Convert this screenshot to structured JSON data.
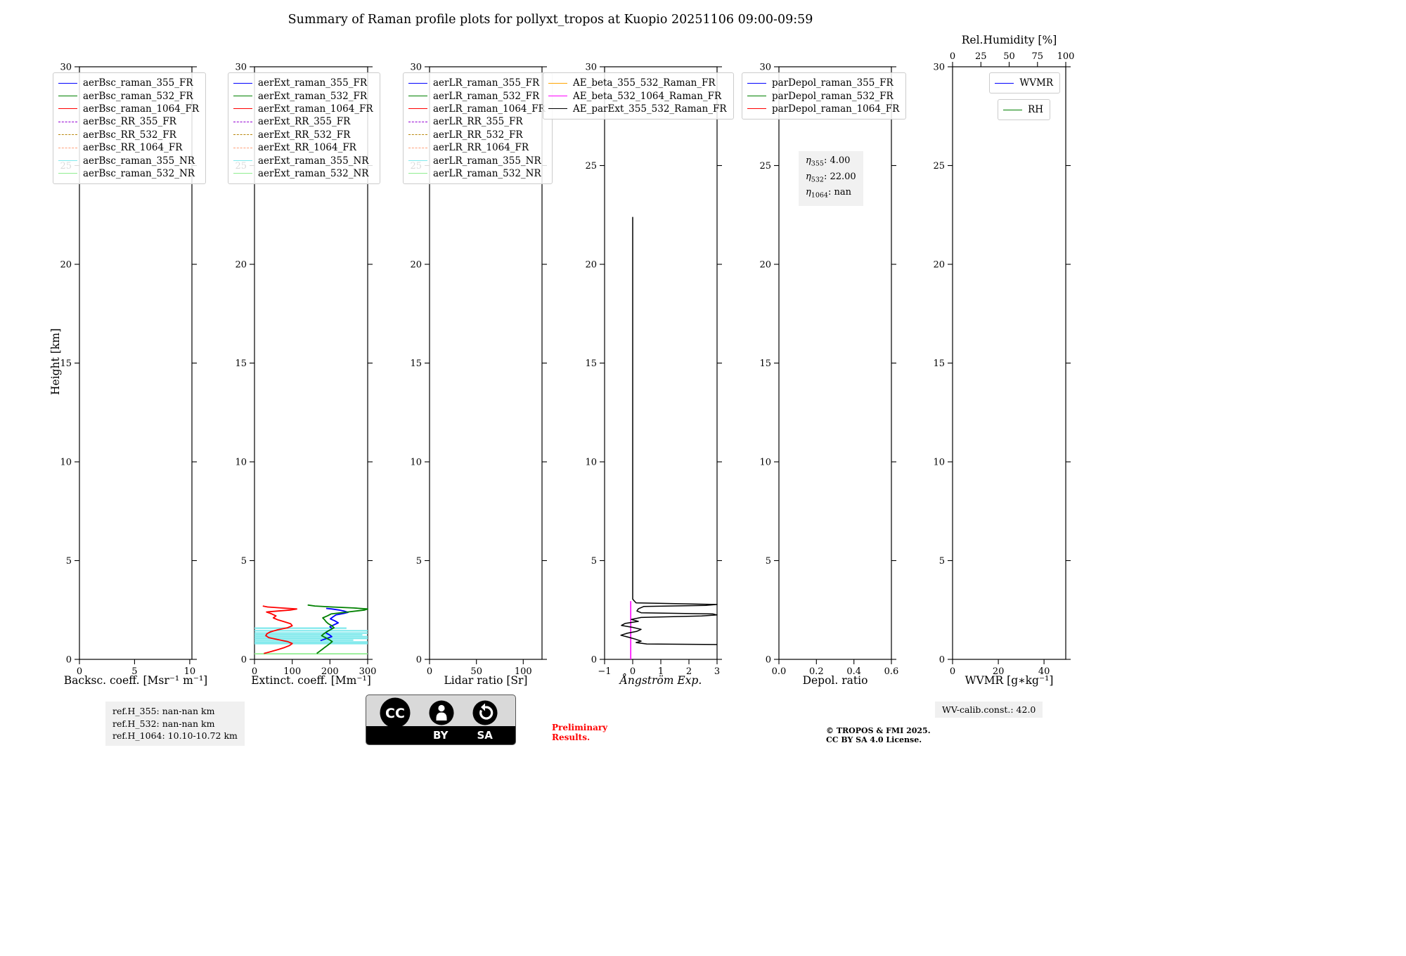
{
  "title": "Summary of Raman profile plots for pollyxt_tropos at Kuopio 20251106 09:00-09:59",
  "ylabel": "Height [km]",
  "footer": {
    "ref_h_355": "ref.H_355: nan-nan km",
    "ref_h_532": "ref.H_532: nan-nan km",
    "ref_h_1064": "ref.H_1064: 10.10-10.72 km",
    "preliminary_line1": "Preliminary",
    "preliminary_line2": "Results.",
    "copyright_line1": "© TROPOS & FMI 2025.",
    "copyright_line2": "CC BY SA 4.0 License.",
    "wv_calib": "WV-calib.const.: 42.0",
    "cc_label": "CC",
    "cc_by": "BY",
    "cc_sa": "SA"
  },
  "chart_data": [
    {
      "id": "backscatter",
      "type": "line",
      "xlabel": "Backsc. coeff. [Msr⁻¹ m⁻¹]",
      "xlim": [
        0,
        10.2
      ],
      "xticks": [
        0,
        5,
        10
      ],
      "xtick_labels": [
        "0",
        "5",
        "10"
      ],
      "ylim": [
        0,
        30
      ],
      "yticks": [
        0,
        5,
        10,
        15,
        20,
        25,
        30
      ],
      "ytick_labels": [
        "0",
        "5",
        "10",
        "15",
        "20",
        "25",
        "30"
      ],
      "grid": false,
      "legend_loc": "upper left",
      "legend": [
        {
          "label": "aerBsc_raman_355_FR",
          "color": "#0000ff",
          "style": "solid"
        },
        {
          "label": "aerBsc_raman_532_FR",
          "color": "#008000",
          "style": "solid"
        },
        {
          "label": "aerBsc_raman_1064_FR",
          "color": "#ff0000",
          "style": "solid"
        },
        {
          "label": "aerBsc_RR_355_FR",
          "color": "#9400d3",
          "style": "dashed"
        },
        {
          "label": "aerBsc_RR_532_FR",
          "color": "#b8860b",
          "style": "dashed"
        },
        {
          "label": "aerBsc_RR_1064_FR",
          "color": "#ffa07a",
          "style": "dashed"
        },
        {
          "label": "aerBsc_raman_355_NR",
          "color": "#7fe9ec",
          "style": "solid"
        },
        {
          "label": "aerBsc_raman_532_NR",
          "color": "#90ee90",
          "style": "solid"
        }
      ],
      "series": []
    },
    {
      "id": "extinction",
      "type": "line",
      "xlabel": "Extinct. coeff. [Mm⁻¹]",
      "xlim": [
        0,
        300
      ],
      "xticks": [
        0,
        100,
        200,
        300
      ],
      "xtick_labels": [
        "0",
        "100",
        "200",
        "300"
      ],
      "ylim": [
        0,
        30
      ],
      "yticks": [
        0,
        5,
        10,
        15,
        20,
        25,
        30
      ],
      "ytick_labels": [
        "0",
        "5",
        "10",
        "15",
        "20",
        "25",
        "30"
      ],
      "grid": false,
      "legend_loc": "upper left",
      "legend": [
        {
          "label": "aerExt_raman_355_FR",
          "color": "#0000ff",
          "style": "solid"
        },
        {
          "label": "aerExt_raman_532_FR",
          "color": "#008000",
          "style": "solid"
        },
        {
          "label": "aerExt_raman_1064_FR",
          "color": "#ff0000",
          "style": "solid"
        },
        {
          "label": "aerExt_RR_355_FR",
          "color": "#9400d3",
          "style": "dashed"
        },
        {
          "label": "aerExt_RR_532_FR",
          "color": "#b8860b",
          "style": "dashed"
        },
        {
          "label": "aerExt_RR_1064_FR",
          "color": "#ffa07a",
          "style": "dashed"
        },
        {
          "label": "aerExt_raman_355_NR",
          "color": "#7fe9ec",
          "style": "solid"
        },
        {
          "label": "aerExt_raman_532_NR",
          "color": "#90ee90",
          "style": "solid"
        }
      ],
      "series": [
        {
          "name": "aerExt_raman_355_NR",
          "color": "#7fe9ec",
          "width": 2.2,
          "segments": [
            [
              [
                0,
                0.8
              ],
              [
                300,
                0.8
              ]
            ],
            [
              [
                0,
                0.88
              ],
              [
                300,
                0.88
              ]
            ],
            [
              [
                0,
                0.97
              ],
              [
                262,
                0.97
              ]
            ],
            [
              [
                0,
                1.06
              ],
              [
                300,
                1.06
              ]
            ],
            [
              [
                0,
                1.15
              ],
              [
                300,
                1.15
              ]
            ],
            [
              [
                0,
                1.24
              ],
              [
                286,
                1.24
              ]
            ],
            [
              [
                0,
                1.33
              ],
              [
                300,
                1.33
              ]
            ],
            [
              [
                0,
                1.45
              ],
              [
                300,
                1.45
              ]
            ],
            [
              [
                0,
                1.58
              ],
              [
                244,
                1.58
              ]
            ]
          ]
        },
        {
          "name": "aerExt_raman_532_NR",
          "color": "#90ee90",
          "width": 1.8,
          "segments": [
            [
              [
                0,
                0.28
              ],
              [
                300,
                0.28
              ]
            ]
          ]
        },
        {
          "name": "aerExt_raman_355_FR",
          "color": "#0000ff",
          "width": 1.8,
          "points": [
            [
              175,
              0.95
            ],
            [
              190,
              1.05
            ],
            [
              205,
              1.15
            ],
            [
              198,
              1.25
            ],
            [
              188,
              1.35
            ],
            [
              196,
              1.45
            ],
            [
              206,
              1.55
            ],
            [
              200,
              1.65
            ],
            [
              211,
              1.75
            ],
            [
              222,
              1.85
            ],
            [
              213,
              1.95
            ],
            [
              201,
              2.05
            ],
            [
              208,
              2.15
            ],
            [
              216,
              2.25
            ],
            [
              236,
              2.32
            ],
            [
              248,
              2.38
            ],
            [
              238,
              2.44
            ],
            [
              224,
              2.5
            ],
            [
              205,
              2.55
            ],
            [
              190,
              2.58
            ]
          ]
        },
        {
          "name": "aerExt_raman_532_FR",
          "color": "#008000",
          "width": 1.8,
          "points": [
            [
              165,
              0.3
            ],
            [
              172,
              0.4
            ],
            [
              179,
              0.5
            ],
            [
              186,
              0.6
            ],
            [
              193,
              0.7
            ],
            [
              200,
              0.8
            ],
            [
              206,
              0.9
            ],
            [
              198,
              1.0
            ],
            [
              188,
              1.1
            ],
            [
              178,
              1.2
            ],
            [
              184,
              1.3
            ],
            [
              192,
              1.4
            ],
            [
              201,
              1.5
            ],
            [
              211,
              1.6
            ],
            [
              205,
              1.7
            ],
            [
              196,
              1.8
            ],
            [
              190,
              1.9
            ],
            [
              186,
              2.0
            ],
            [
              181,
              2.1
            ],
            [
              193,
              2.2
            ],
            [
              203,
              2.3
            ],
            [
              247,
              2.4
            ],
            [
              292,
              2.5
            ],
            [
              300,
              2.55
            ],
            [
              263,
              2.6
            ],
            [
              206,
              2.65
            ],
            [
              160,
              2.7
            ],
            [
              141,
              2.75
            ]
          ]
        },
        {
          "name": "aerExt_raman_1064_FR",
          "color": "#ff0000",
          "width": 1.8,
          "points": [
            [
              25,
              0.3
            ],
            [
              45,
              0.4
            ],
            [
              63,
              0.5
            ],
            [
              80,
              0.6
            ],
            [
              93,
              0.7
            ],
            [
              100,
              0.8
            ],
            [
              88,
              0.9
            ],
            [
              62,
              1.0
            ],
            [
              38,
              1.1
            ],
            [
              30,
              1.2
            ],
            [
              33,
              1.3
            ],
            [
              43,
              1.4
            ],
            [
              62,
              1.5
            ],
            [
              88,
              1.6
            ],
            [
              100,
              1.7
            ],
            [
              96,
              1.8
            ],
            [
              80,
              1.9
            ],
            [
              62,
              2.0
            ],
            [
              50,
              2.1
            ],
            [
              57,
              2.2
            ],
            [
              46,
              2.3
            ],
            [
              32,
              2.4
            ],
            [
              63,
              2.45
            ],
            [
              95,
              2.5
            ],
            [
              112,
              2.55
            ],
            [
              72,
              2.6
            ],
            [
              35,
              2.65
            ],
            [
              22,
              2.7
            ]
          ]
        }
      ]
    },
    {
      "id": "lidar-ratio",
      "type": "line",
      "xlabel": "Lidar ratio [Sr]",
      "xlim": [
        0,
        120
      ],
      "xticks": [
        0,
        50,
        100
      ],
      "xtick_labels": [
        "0",
        "50",
        "100"
      ],
      "ylim": [
        0,
        30
      ],
      "yticks": [
        0,
        5,
        10,
        15,
        20,
        25,
        30
      ],
      "ytick_labels": [
        "0",
        "5",
        "10",
        "15",
        "20",
        "25",
        "30"
      ],
      "grid": false,
      "legend_loc": "upper left",
      "legend": [
        {
          "label": "aerLR_raman_355_FR",
          "color": "#0000ff",
          "style": "solid"
        },
        {
          "label": "aerLR_raman_532_FR",
          "color": "#008000",
          "style": "solid"
        },
        {
          "label": "aerLR_raman_1064_FR",
          "color": "#ff0000",
          "style": "solid"
        },
        {
          "label": "aerLR_RR_355_FR",
          "color": "#9400d3",
          "style": "dashed"
        },
        {
          "label": "aerLR_RR_532_FR",
          "color": "#b8860b",
          "style": "dashed"
        },
        {
          "label": "aerLR_RR_1064_FR",
          "color": "#ffa07a",
          "style": "dashed"
        },
        {
          "label": "aerLR_raman_355_NR",
          "color": "#7fe9ec",
          "style": "solid"
        },
        {
          "label": "aerLR_raman_532_NR",
          "color": "#90ee90",
          "style": "solid"
        }
      ],
      "series": []
    },
    {
      "id": "angstrom",
      "type": "line",
      "xlabel": "Ångström Exp.",
      "xlabel_italic": true,
      "xlim": [
        -1,
        3
      ],
      "xticks": [
        -1,
        0,
        1,
        2,
        3
      ],
      "xtick_labels": [
        "−1",
        "0",
        "1",
        "2",
        "3"
      ],
      "ylim": [
        0,
        30
      ],
      "yticks": [
        0,
        5,
        10,
        15,
        20,
        25,
        30
      ],
      "ytick_labels": [
        "0",
        "5",
        "10",
        "15",
        "20",
        "25",
        "30"
      ],
      "grid": false,
      "legend_loc": "upper left",
      "legend": [
        {
          "label": "AE_beta_355_532_Raman_FR",
          "color": "#ffa500",
          "style": "solid"
        },
        {
          "label": "AE_beta_532_1064_Raman_FR",
          "color": "#ff00ff",
          "style": "solid"
        },
        {
          "label": "AE_parExt_355_532_Raman_FR",
          "color": "#000000",
          "style": "solid"
        }
      ],
      "series": [
        {
          "name": "AE_beta_532_1064_Raman_FR",
          "color": "#ff00ff",
          "width": 1.6,
          "points": [
            [
              -0.07,
              0
            ],
            [
              -0.07,
              2.95
            ]
          ]
        },
        {
          "name": "AE_parExt_355_532_Raman_FR",
          "color": "#000000",
          "width": 1.5,
          "points": [
            [
              0,
              22.4
            ],
            [
              0,
              15
            ],
            [
              0,
              8
            ],
            [
              0,
              3.05
            ],
            [
              0.06,
              2.95
            ],
            [
              0.12,
              2.86
            ],
            [
              3,
              2.78
            ],
            [
              2.6,
              2.73
            ],
            [
              0.4,
              2.68
            ],
            [
              0.2,
              2.56
            ],
            [
              0.15,
              2.45
            ],
            [
              0.3,
              2.36
            ],
            [
              2.85,
              2.3
            ],
            [
              3,
              2.25
            ],
            [
              2.45,
              2.2
            ],
            [
              0.3,
              2.12
            ],
            [
              -0.05,
              2.02
            ],
            [
              0.2,
              1.92
            ],
            [
              -0.27,
              1.82
            ],
            [
              -0.4,
              1.72
            ],
            [
              0,
              1.62
            ],
            [
              0.3,
              1.52
            ],
            [
              0.15,
              1.42
            ],
            [
              -0.2,
              1.32
            ],
            [
              -0.42,
              1.22
            ],
            [
              -0.15,
              1.12
            ],
            [
              0.1,
              1.02
            ],
            [
              0.3,
              0.92
            ],
            [
              0.12,
              0.85
            ],
            [
              0.5,
              0.78
            ],
            [
              3,
              0.75
            ]
          ]
        }
      ]
    },
    {
      "id": "depol",
      "type": "line",
      "xlabel": "Depol. ratio",
      "xlim": [
        0,
        0.6
      ],
      "xticks": [
        0,
        0.2,
        0.4,
        0.6
      ],
      "xtick_labels": [
        "0.0",
        "0.2",
        "0.4",
        "0.6"
      ],
      "ylim": [
        0,
        30
      ],
      "yticks": [
        0,
        5,
        10,
        15,
        20,
        25,
        30
      ],
      "ytick_labels": [
        "0",
        "5",
        "10",
        "15",
        "20",
        "25",
        "30"
      ],
      "grid": false,
      "legend_loc": "upper left",
      "legend": [
        {
          "label": "parDepol_raman_355_FR",
          "color": "#0000ff",
          "style": "solid"
        },
        {
          "label": "parDepol_raman_532_FR",
          "color": "#008000",
          "style": "solid"
        },
        {
          "label": "parDepol_raman_1064_FR",
          "color": "#ff0000",
          "style": "solid"
        }
      ],
      "annotation": {
        "eta": [
          {
            "symbol": "η",
            "sub": "355",
            "value": "4.00"
          },
          {
            "symbol": "η",
            "sub": "532",
            "value": "22.00"
          },
          {
            "symbol": "η",
            "sub": "1064",
            "value": "nan"
          }
        ]
      },
      "series": []
    },
    {
      "id": "wvmr",
      "type": "line",
      "xlabel": "WVMR [g∗kg⁻¹]",
      "xlim": [
        0,
        49.5
      ],
      "xticks": [
        0,
        20,
        40
      ],
      "xtick_labels": [
        "0",
        "20",
        "40"
      ],
      "ylim": [
        0,
        30
      ],
      "yticks": [
        0,
        5,
        10,
        15,
        20,
        25,
        30
      ],
      "ytick_labels": [
        "0",
        "5",
        "10",
        "15",
        "20",
        "25",
        "30"
      ],
      "grid": false,
      "top_axis": {
        "label": "Rel.Humidity [%]",
        "lim": [
          0,
          100
        ],
        "ticks": [
          0,
          25,
          50,
          75,
          100
        ],
        "tick_labels": [
          "0",
          "25",
          "50",
          "75",
          "100"
        ]
      },
      "legend_loc": "upper right",
      "legend_split": true,
      "legend": [
        {
          "label": "WVMR",
          "color": "#0000ff",
          "style": "solid"
        },
        {
          "label": "RH",
          "color": "#008000",
          "style": "solid"
        }
      ],
      "series": []
    }
  ]
}
